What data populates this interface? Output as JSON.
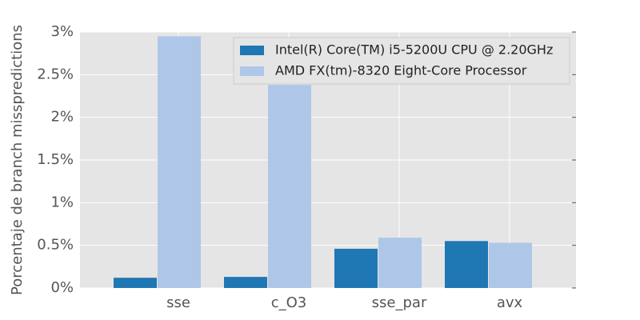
{
  "chart_data": {
    "type": "bar",
    "categories": [
      "sse",
      "c_O3",
      "sse_par",
      "avx"
    ],
    "ylabel": "Porcentaje de branch misspredictions",
    "series": [
      {
        "name": "Intel(R) Core(TM) i5-5200U CPU @ 2.20GHz",
        "color": "#1f77b4",
        "values": [
          0.12,
          0.13,
          0.46,
          0.55
        ]
      },
      {
        "name": "AMD FX(tm)-8320 Eight-Core Processor",
        "color": "#aec7e8",
        "values": [
          2.95,
          2.38,
          0.59,
          0.53
        ]
      }
    ],
    "ylim": [
      0,
      3
    ],
    "yticks": [
      {
        "value": 0,
        "label": "0%"
      },
      {
        "value": 0.5,
        "label": "0.5%"
      },
      {
        "value": 1,
        "label": "1%"
      },
      {
        "value": 1.5,
        "label": "1.5%"
      },
      {
        "value": 2,
        "label": "2%"
      },
      {
        "value": 2.5,
        "label": "2.5%"
      },
      {
        "value": 3,
        "label": "3%"
      }
    ],
    "grid": true,
    "legend": "upper right"
  }
}
